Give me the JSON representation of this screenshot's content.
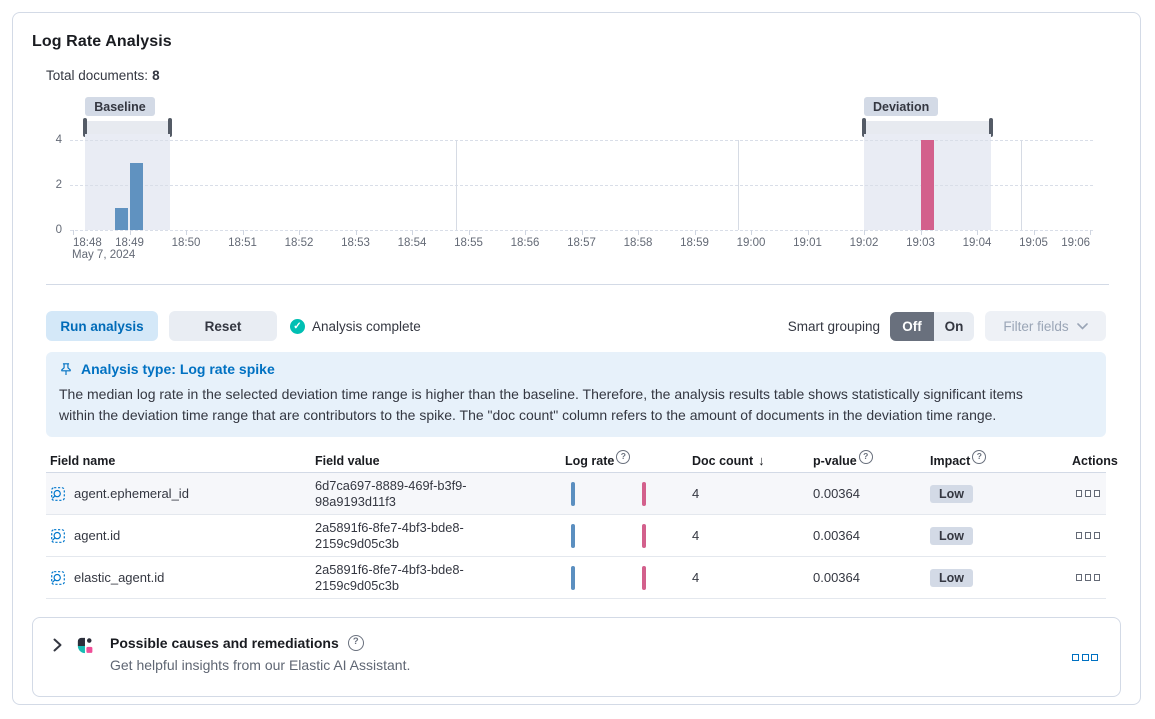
{
  "card": {
    "title": "Log Rate Analysis"
  },
  "summary": {
    "label": "Total documents:",
    "value": "8"
  },
  "chart": {
    "baseline_label": "Baseline",
    "deviation_label": "Deviation",
    "date_label": "May 7, 2024",
    "chart_data": {
      "type": "bar",
      "title": "Log rate histogram",
      "x_ticks": [
        "18:48",
        "18:49",
        "18:50",
        "18:51",
        "18:52",
        "18:53",
        "18:54",
        "18:55",
        "18:56",
        "18:57",
        "18:58",
        "18:59",
        "19:00",
        "19:01",
        "19:02",
        "19:03",
        "19:04",
        "19:05",
        "19:06"
      ],
      "y_ticks": [
        0,
        2,
        4
      ],
      "ylim": [
        0,
        4
      ],
      "bin_seconds": 15,
      "grid_vertical_at": [
        "18:55",
        "19:00",
        "19:05"
      ],
      "baseline_window": [
        "18:48:13",
        "18:49:43"
      ],
      "deviation_window": [
        "19:02:00",
        "19:04:15"
      ],
      "series": [
        {
          "name": "baseline",
          "color": "#6092c0",
          "points": [
            {
              "time": "18:48:45",
              "count": 1
            },
            {
              "time": "18:49:00",
              "count": 3
            }
          ]
        },
        {
          "name": "deviation",
          "color": "#d3608c",
          "points": [
            {
              "time": "19:03:00",
              "count": 4
            }
          ]
        }
      ]
    }
  },
  "toolbar": {
    "run_button": "Run analysis",
    "reset_button": "Reset",
    "status": "Analysis complete",
    "smart_grouping_label": "Smart grouping",
    "off_label": "Off",
    "on_label": "On",
    "filter_fields_label": "Filter fields"
  },
  "callout": {
    "title": "Analysis type: Log rate spike",
    "body": "The median log rate in the selected deviation time range is higher than the baseline. Therefore, the analysis results table shows statistically significant items within the deviation time range that are contributors to the spike. The \"doc count\" column refers to the amount of documents in the deviation time range."
  },
  "table": {
    "columns": {
      "field_name": "Field name",
      "field_value": "Field value",
      "log_rate": "Log rate",
      "doc_count": "Doc count",
      "p_value": "p-value",
      "impact": "Impact",
      "actions": "Actions"
    },
    "rows": [
      {
        "field_name": "agent.ephemeral_id",
        "field_value": "6d7ca697-8889-469f-b3f9-98a9193d11f3",
        "doc_count": "4",
        "p_value": "0.00364",
        "impact": "Low"
      },
      {
        "field_name": "agent.id",
        "field_value": "2a5891f6-8fe7-4bf3-bde8-2159c9d05c3b",
        "doc_count": "4",
        "p_value": "0.00364",
        "impact": "Low"
      },
      {
        "field_name": "elastic_agent.id",
        "field_value": "2a5891f6-8fe7-4bf3-bde8-2159c9d05c3b",
        "doc_count": "4",
        "p_value": "0.00364",
        "impact": "Low"
      }
    ]
  },
  "ai_panel": {
    "title": "Possible causes and remediations",
    "subtitle": "Get helpful insights from our Elastic AI Assistant."
  },
  "colors": {
    "primary": "#0071c2",
    "success": "#00bfb3",
    "chart_blue": "#6092c0",
    "chart_pink": "#d3608c",
    "badge_bg": "#d3dae6"
  }
}
